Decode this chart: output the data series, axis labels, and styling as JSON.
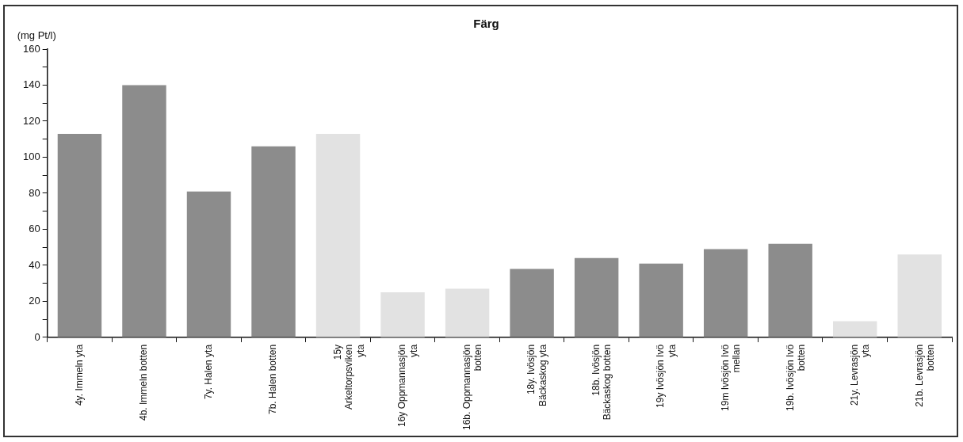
{
  "chart_data": {
    "type": "bar",
    "title": "Färg",
    "ylabel": "(mg Pt/l)",
    "categories": [
      "4y. Immeln yta",
      "4b. Immeln botten",
      "7y. Halen yta",
      "7b. Halen botten",
      "15y Arkeltorpsviken yta",
      "16y Oppmannasjön yta",
      "16b. Oppmannasjön botten",
      "18y. Ivösjön Bäckaskog yta",
      "18b. Ivösjön Bäckaskog botten",
      "19y Ivösjön Ivö yta",
      "19m Ivösjön Ivö mellan",
      "19b. Ivösjön Ivö botten",
      "21y. Levrasjön yta",
      "21b. Levrasjön botten"
    ],
    "values": [
      113,
      140,
      81,
      106,
      113,
      25,
      27,
      38,
      44,
      41,
      49,
      52,
      9,
      46
    ],
    "colors": [
      "#8c8c8c",
      "#8c8c8c",
      "#8c8c8c",
      "#8c8c8c",
      "#e2e2e2",
      "#e2e2e2",
      "#e2e2e2",
      "#8c8c8c",
      "#8c8c8c",
      "#8c8c8c",
      "#8c8c8c",
      "#8c8c8c",
      "#e2e2e2",
      "#e2e2e2"
    ],
    "ylim": [
      0,
      160
    ],
    "yticks": [
      0,
      {
        "value": 10,
        "label": null
      },
      20,
      {
        "value": 30,
        "label": null
      },
      40,
      {
        "value": 50,
        "label": null
      },
      60,
      {
        "value": 70,
        "label": null
      },
      80,
      {
        "value": 90,
        "label": null
      },
      100,
      {
        "value": 110,
        "label": null
      },
      120,
      {
        "value": 130,
        "label": null
      },
      140,
      {
        "value": 150,
        "label": null
      },
      160
    ],
    "grid": false,
    "legend": false
  }
}
